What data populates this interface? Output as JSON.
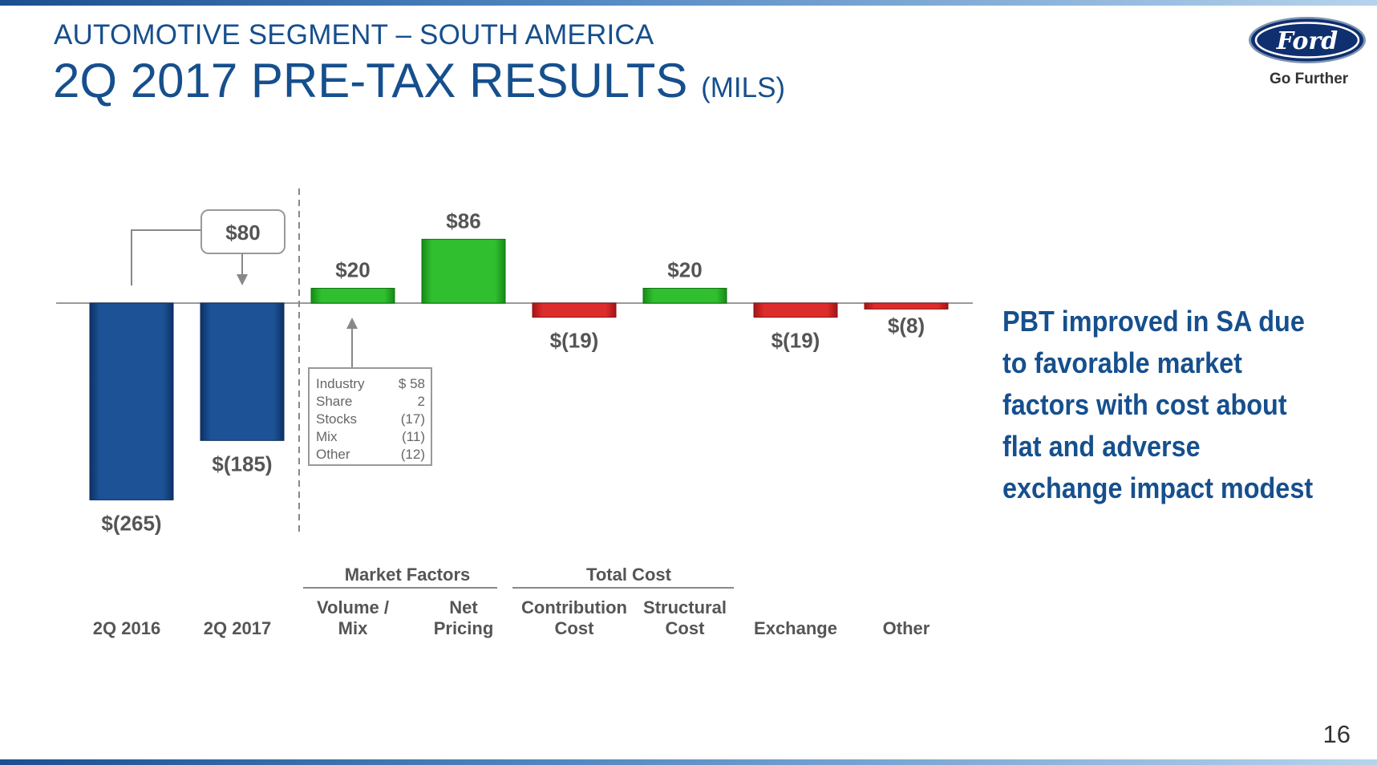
{
  "header": {
    "subtitle": "AUTOMOTIVE SEGMENT – SOUTH AMERICA",
    "title": "2Q 2017 PRE-TAX RESULTS",
    "title_unit": "(MILS)"
  },
  "logo": {
    "text": "Ford",
    "tagline": "Go Further"
  },
  "callout": "PBT improved in SA due to favorable market factors with cost about flat and adverse exchange impact modest",
  "page_number": "16",
  "colors": {
    "title": "#164f8d",
    "base_bar": "#1a4d8c",
    "positive_bar": "#2db52d",
    "negative_bar": "#d42a2a",
    "label": "#555555"
  },
  "chart_data": {
    "type": "bar",
    "subtype": "waterfall",
    "categories": [
      "2Q 2016",
      "2Q 2017",
      "Volume / Mix",
      "Net Pricing",
      "Contribution Cost",
      "Structural Cost",
      "Exchange",
      "Other"
    ],
    "values": [
      -265,
      -185,
      20,
      86,
      -19,
      20,
      -19,
      -8
    ],
    "value_labels": [
      "$(265)",
      "$(185)",
      "$20",
      "$86",
      "$(19)",
      "$20",
      "$(19)",
      "$(8)"
    ],
    "bar_kind": [
      "base",
      "base",
      "positive",
      "positive",
      "negative",
      "positive",
      "negative",
      "negative"
    ],
    "groups": [
      {
        "label": "Market Factors",
        "categories": [
          "Volume / Mix",
          "Net Pricing"
        ]
      },
      {
        "label": "Total Cost",
        "categories": [
          "Contribution Cost",
          "Structural Cost"
        ]
      }
    ],
    "change_label": "$80",
    "volume_mix_detail": [
      {
        "label": "Industry",
        "value": "$ 58"
      },
      {
        "label": "Share",
        "value": "2"
      },
      {
        "label": "Stocks",
        "value": "(17)"
      },
      {
        "label": "Mix",
        "value": "(11)"
      },
      {
        "label": "Other",
        "value": "(12)"
      }
    ],
    "ylim": [
      -265,
      86
    ]
  }
}
